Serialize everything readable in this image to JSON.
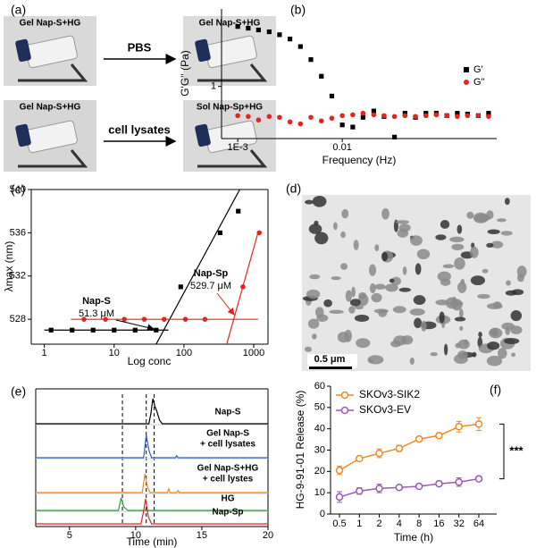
{
  "panel_labels": [
    "(a)",
    "(b)",
    "(c)",
    "(d)",
    "(e)",
    "(f)"
  ],
  "photos_a": {
    "captions": [
      "Gel Nap-S+HG",
      "Gel Nap-S+HG",
      "Gel Nap-S+HG",
      "Sol Nap-Sp+HG"
    ],
    "arrows": [
      "PBS",
      "cell lysates"
    ]
  },
  "micrograph_d": {
    "scale_bar": "0.5 μm"
  },
  "chart_data": [
    {
      "type": "scatter",
      "xlabel": "Frequency (Hz)",
      "ylabel": "G'G'' (Pa)",
      "xlog": true,
      "ylog": true,
      "xlim": [
        0.0007,
        0.3
      ],
      "ylim": [
        0.26,
        7.4
      ],
      "xticks": [
        {
          "value": 0.001,
          "label": "1E-3"
        },
        0.01
      ],
      "yticks": [
        1
      ],
      "legend": "right",
      "series": [
        {
          "name": "G'",
          "color": "#000000",
          "marker": "square",
          "x": [
            0.001,
            0.00126,
            0.00158,
            0.002,
            0.00251,
            0.00316,
            0.00398,
            0.00501,
            0.00631,
            0.00794,
            0.01,
            0.0126,
            0.0158,
            0.02,
            0.0251,
            0.0316,
            0.0398,
            0.0501,
            0.0631,
            0.0794,
            0.1,
            0.126,
            0.158,
            0.2,
            0.251
          ],
          "values": [
            4.7,
            4.5,
            4.3,
            4.1,
            3.8,
            3.4,
            2.8,
            2.0,
            1.3,
            0.78,
            0.37,
            0.35,
            0.45,
            0.53,
            0.46,
            0.27,
            0.5,
            0.45,
            0.5,
            0.5,
            0.47,
            0.5,
            0.49,
            0.47,
            0.5
          ]
        },
        {
          "name": "G''",
          "color": "#e8231f",
          "marker": "circle",
          "x": [
            0.001,
            0.00126,
            0.00158,
            0.002,
            0.00251,
            0.00316,
            0.00398,
            0.00501,
            0.00631,
            0.00794,
            0.01,
            0.0126,
            0.0158,
            0.02,
            0.0251,
            0.0316,
            0.0398,
            0.0501,
            0.0631,
            0.0794,
            0.1,
            0.126,
            0.158,
            0.2,
            0.251
          ],
          "values": [
            0.47,
            0.46,
            0.42,
            0.46,
            0.45,
            0.4,
            0.38,
            0.45,
            0.41,
            0.44,
            0.47,
            0.48,
            0.5,
            0.48,
            0.47,
            0.46,
            0.47,
            0.46,
            0.47,
            0.48,
            0.47,
            0.46,
            0.47,
            0.47,
            0.46
          ]
        }
      ]
    },
    {
      "type": "scatter",
      "xlabel": "Log conc",
      "ylabel": "λmax (nm)",
      "xlog": true,
      "xlim": [
        0.65,
        1600
      ],
      "ylim": [
        525.7,
        540
      ],
      "xticks": [
        1,
        10,
        100,
        1000
      ],
      "yticks": [
        528,
        532,
        536,
        540
      ],
      "series": [
        {
          "color": "#000000",
          "marker": "square",
          "x": [
            1.25,
            2.5,
            5,
            10,
            20,
            40,
            90,
            330,
            600
          ],
          "values": [
            527,
            527,
            527,
            527,
            527,
            527,
            531,
            536,
            538
          ]
        },
        {
          "color": "#e8231f",
          "marker": "circle",
          "x": [
            3.7,
            7.5,
            14,
            27,
            52,
            105,
            200,
            700,
            1200
          ],
          "values": [
            528,
            528,
            528,
            528,
            528,
            528,
            528,
            531,
            536
          ]
        }
      ],
      "lines": [
        {
          "color": "#000000",
          "x": [
            1,
            60
          ],
          "values": [
            527,
            527
          ]
        },
        {
          "color": "#000000",
          "x": [
            40,
            630
          ],
          "values": [
            525.7,
            540
          ]
        },
        {
          "color": "#e8231f",
          "x": [
            2.4,
            1150
          ],
          "values": [
            528,
            528
          ]
        },
        {
          "color": "#e8231f",
          "x": [
            410,
            1150
          ],
          "values": [
            525.7,
            536
          ]
        }
      ],
      "annotations": [
        {
          "text": "Nap-S",
          "color": "#000000"
        },
        {
          "text": "51.3 μM",
          "color": "#000000"
        },
        {
          "text": "Nap-Sp",
          "color": "#000000"
        },
        {
          "text": "529.7 μM",
          "color": "#e8231f"
        }
      ]
    },
    {
      "type": "line",
      "xlabel": "Time (min)",
      "xlim": [
        2.45,
        20
      ],
      "xticks": [
        5,
        10,
        15,
        20
      ],
      "reference_lines": [
        9,
        10.8,
        11.4
      ],
      "series": [
        {
          "label_lines": [
            "Nap-S"
          ],
          "color": "#000000",
          "x": [
            2.45,
            11.0,
            11.15,
            11.3,
            11.45,
            11.6,
            11.8,
            12.0,
            20
          ],
          "values": [
            0,
            0,
            0.4,
            1.0,
            0.7,
            0.5,
            0.15,
            0,
            0
          ]
        },
        {
          "label_lines": [
            "Gel Nap-S",
            "+ cell lysates"
          ],
          "color": "#2f5fd0",
          "x": [
            2.45,
            10.6,
            10.8,
            11.0,
            11.2,
            13.0,
            13.1,
            13.2,
            20
          ],
          "values": [
            0,
            0,
            0.9,
            0.3,
            0,
            0,
            0.08,
            0,
            0
          ]
        },
        {
          "label_lines": [
            "Gel Nap-S+HG",
            "+ cell lystes"
          ],
          "color": "#f08a24",
          "x": [
            2.45,
            10.5,
            10.7,
            10.9,
            11.1,
            12.4,
            12.5,
            12.6,
            13.1,
            13.2,
            13.3,
            20
          ],
          "values": [
            0,
            0,
            0.75,
            0.2,
            0,
            0,
            0.15,
            0,
            0,
            0.08,
            0,
            0
          ]
        },
        {
          "label_lines": [
            "HG"
          ],
          "color": "#2e9b3e",
          "x": [
            2.45,
            8.7,
            8.9,
            9.1,
            9.4,
            20
          ],
          "values": [
            0,
            0,
            0.5,
            0.15,
            0,
            0
          ]
        },
        {
          "label_lines": [
            "Nap-Sp"
          ],
          "color": "#e8231f",
          "x": [
            2.45,
            10.4,
            10.6,
            10.75,
            10.95,
            11.2,
            20
          ],
          "values": [
            0,
            0,
            0.5,
            1.0,
            0.3,
            0,
            0
          ]
        }
      ]
    },
    {
      "type": "line",
      "xlabel": "Time (h)",
      "ylabel": "HG-9-91-01 Release (%)",
      "categories": [
        "0.5",
        "1",
        "2",
        "4",
        "8",
        "16",
        "32",
        "64"
      ],
      "ylim": [
        0,
        60
      ],
      "yticks": [
        0,
        10,
        20,
        30,
        40,
        50,
        60
      ],
      "legend": "upper left",
      "series": [
        {
          "name": "SKOv3-SIK2",
          "color": "#f08a24",
          "values": [
            20.5,
            26,
            28.5,
            30.8,
            35.2,
            36.8,
            41,
            42.2
          ],
          "errors": [
            2,
            1,
            2,
            1.5,
            0.5,
            0.5,
            2.5,
            3
          ]
        },
        {
          "name": "SKOv3-EV",
          "color": "#9b59b6",
          "values": [
            8,
            10.8,
            12,
            12.5,
            13,
            14.2,
            15,
            16.5
          ],
          "errors": [
            2.5,
            1.5,
            2,
            1,
            0.5,
            0.5,
            2,
            0.5
          ]
        }
      ],
      "annotations": [
        {
          "text": "***",
          "color": "#000000"
        }
      ]
    }
  ]
}
